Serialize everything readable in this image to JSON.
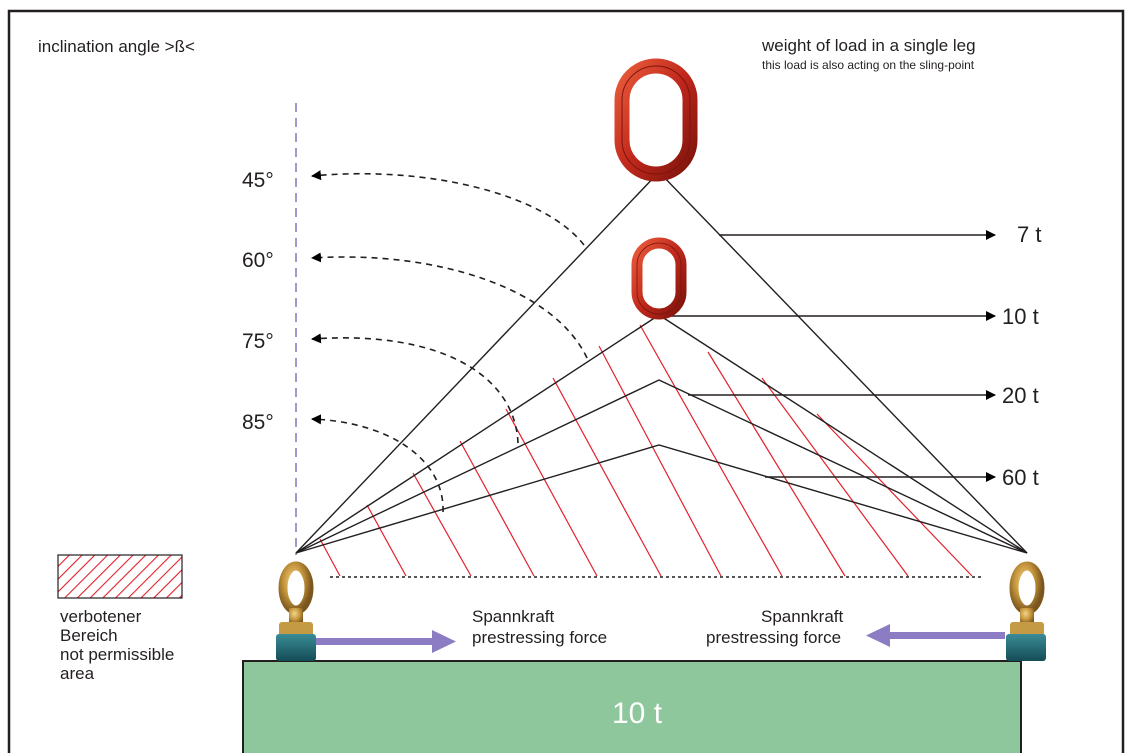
{
  "header": {
    "inclination_label": "inclination angle >ß<",
    "weight_title": "weight of load in a single leg",
    "weight_subtitle": "this load is also acting on the sling-point"
  },
  "angles": [
    "45°",
    "60°",
    "75°",
    "85°"
  ],
  "leg_loads": [
    "7 t",
    "10 t",
    "20 t",
    "60 t"
  ],
  "legend": {
    "line1": "verbotener",
    "line2": "Bereich",
    "line3": "not permissible",
    "line4": "area"
  },
  "forces": {
    "left": {
      "de": "Spannkraft",
      "en": "prestressing force"
    },
    "right": {
      "de": "Spannkraft",
      "en": "prestressing force"
    }
  },
  "base_load": "10 t",
  "colors": {
    "hatch_red": "#e3202b",
    "ring_red": "#c0281c",
    "base_green": "#8ec79b",
    "arrow_purple": "#8c7cc4",
    "dashed_axis": "#8a7fbf",
    "shackle_gold": "#b8862e",
    "shackle_teal": "#1d6b77"
  }
}
